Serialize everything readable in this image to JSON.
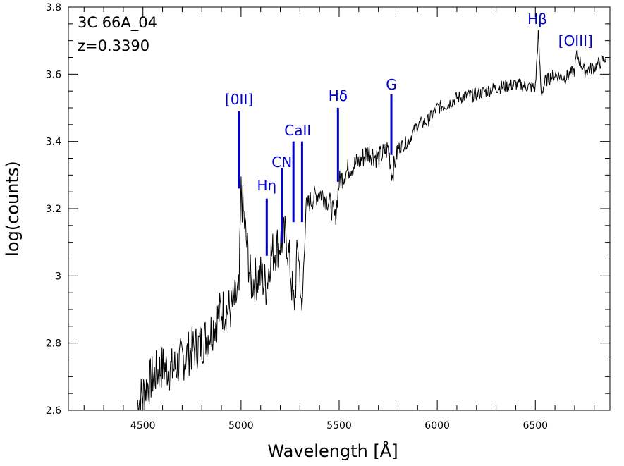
{
  "chart_data": {
    "type": "line",
    "object_name": "3C 66A_04",
    "redshift_label": "z=0.3390",
    "xlabel": "Wavelength [Å]",
    "ylabel": "log(counts)",
    "xlim": [
      4120,
      6880
    ],
    "ylim": [
      2.6,
      3.8
    ],
    "xticks": [
      4500,
      5000,
      5500,
      6000,
      6500
    ],
    "xtick_labels": [
      "4500",
      "5000",
      "5500",
      "6000",
      "6500"
    ],
    "yticks": [
      2.6,
      2.8,
      3.0,
      3.2,
      3.4,
      3.6,
      3.8
    ],
    "ytick_labels": [
      "2.6",
      "2.8",
      "3",
      "3.2",
      "3.4",
      "3.6",
      "3.8"
    ],
    "grid": false,
    "line_color": "#000000",
    "marker_color": "#0000cc",
    "spectrum": {
      "x": [
        4470,
        4500,
        4550,
        4600,
        4650,
        4700,
        4750,
        4800,
        4850,
        4900,
        4950,
        4990,
        5000,
        5050,
        5100,
        5130,
        5150,
        5200,
        5230,
        5250,
        5270,
        5290,
        5310,
        5330,
        5350,
        5400,
        5450,
        5480,
        5500,
        5550,
        5600,
        5650,
        5700,
        5750,
        5770,
        5800,
        5850,
        5900,
        5950,
        6000,
        6050,
        6100,
        6200,
        6300,
        6400,
        6500,
        6515,
        6530,
        6550,
        6600,
        6650,
        6700,
        6710,
        6750,
        6800,
        6860
      ],
      "y": [
        2.62,
        2.65,
        2.7,
        2.73,
        2.72,
        2.75,
        2.78,
        2.8,
        2.84,
        2.9,
        2.9,
        2.95,
        3.25,
        2.98,
        3.0,
        2.97,
        3.06,
        3.1,
        3.12,
        3.03,
        2.9,
        3.1,
        2.88,
        3.2,
        3.22,
        3.25,
        3.22,
        3.17,
        3.28,
        3.32,
        3.34,
        3.37,
        3.35,
        3.38,
        3.3,
        3.38,
        3.4,
        3.45,
        3.46,
        3.5,
        3.51,
        3.53,
        3.54,
        3.56,
        3.57,
        3.56,
        3.72,
        3.54,
        3.58,
        3.6,
        3.59,
        3.61,
        3.66,
        3.61,
        3.62,
        3.65
      ]
    },
    "line_markers": [
      {
        "label": "[0II]",
        "x": 4990,
        "y_bottom": 3.26,
        "y_top": 3.49
      },
      {
        "label": "Hη",
        "x": 5131,
        "y_bottom": 3.06,
        "y_top": 3.23
      },
      {
        "label": "CN",
        "x": 5208,
        "y_bottom": 3.1,
        "y_top": 3.32
      },
      {
        "label": "CaII",
        "x": 5267,
        "y_bottom": 3.16,
        "y_top": 3.4
      },
      {
        "label": "",
        "x": 5311,
        "y_bottom": 3.16,
        "y_top": 3.4
      },
      {
        "label": "Hδ",
        "x": 5494,
        "y_bottom": 3.28,
        "y_top": 3.5
      },
      {
        "label": "G",
        "x": 5766,
        "y_bottom": 3.36,
        "y_top": 3.54
      },
      {
        "label": "Hβ",
        "x": 6510,
        "y_bottom": null,
        "y_top": null
      },
      {
        "label": "[OIII]",
        "x": 6705,
        "y_bottom": null,
        "y_top": null
      }
    ]
  }
}
